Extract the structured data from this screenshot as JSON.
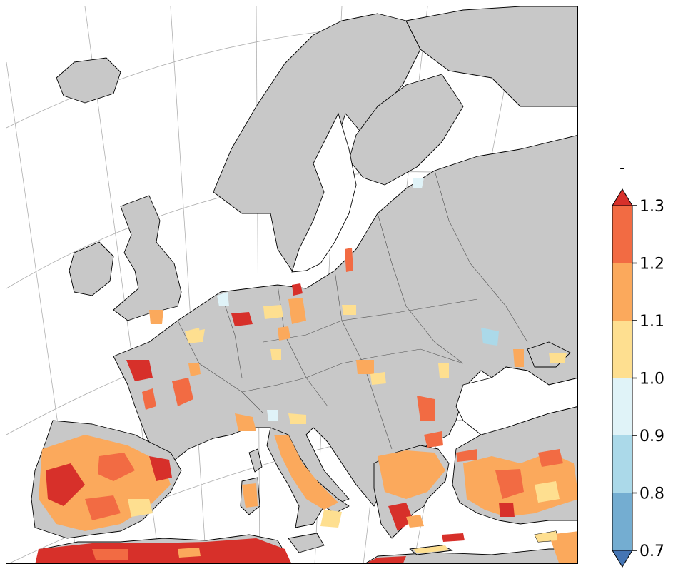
{
  "colorbar": {
    "unit_label": "-",
    "ticks": [
      "1.3",
      "1.2",
      "1.1",
      "1.0",
      "0.9",
      "0.8",
      "0.7"
    ],
    "bins": [
      {
        "range": "1.2-1.3",
        "color": "#f26b43"
      },
      {
        "range": "1.1-1.2",
        "color": "#fba95c"
      },
      {
        "range": "1.0-1.1",
        "color": "#fedf90"
      },
      {
        "range": "0.9-1.0",
        "color": "#e0f3f8"
      },
      {
        "range": "0.8-0.9",
        "color": "#abd9e9"
      },
      {
        "range": "0.7-0.8",
        "color": "#74add1"
      }
    ],
    "extend_max_color": "#d7302a",
    "extend_min_color": "#4575b4"
  },
  "map": {
    "projection": "conic",
    "land_color": "#c8c8c8",
    "sea_color": "#ffffff",
    "border_color": "#000000",
    "gridlines": true
  }
}
